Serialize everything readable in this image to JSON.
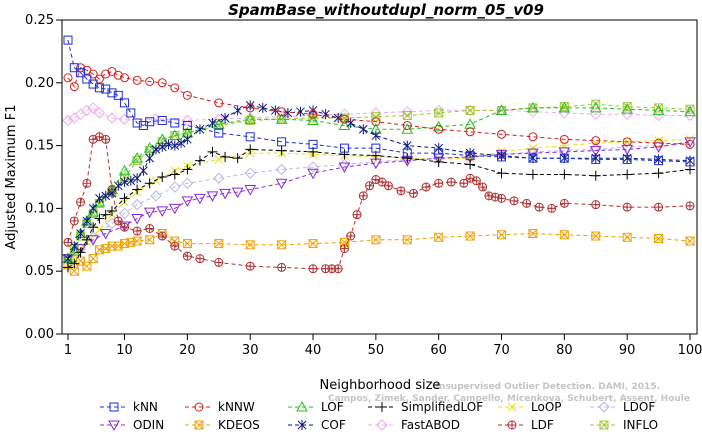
{
  "chart_data": {
    "type": "line",
    "title": "SpamBase_withoutdupl_norm_05_v09",
    "xlabel": "Neighborhood size",
    "ylabel": "Adjusted Maximum F1",
    "xlim": [
      1,
      100
    ],
    "ylim": [
      0,
      0.25
    ],
    "x_ticks": [
      "1",
      "10",
      "20",
      "30",
      "40",
      "50",
      "60",
      "70",
      "80",
      "90",
      "100"
    ],
    "y_ticks": [
      "0.00",
      "0.05",
      "0.10",
      "0.15",
      "0.20",
      "0.25"
    ],
    "grid": false,
    "legend_position": "bottom",
    "watermark": [
      "Unsupervised Outlier Detection. DAMI, 2015.",
      "Campos, Zimek, Sander, Campello, Micenkova, Schubert, Assent, Houle"
    ],
    "series": [
      {
        "name": "kNN",
        "color": "#1f2fd0",
        "marker": "square",
        "x": [
          1,
          2,
          3,
          4,
          5,
          6,
          7,
          8,
          9,
          10,
          11,
          12,
          13,
          14,
          16,
          18,
          20,
          25,
          30,
          35,
          40,
          45,
          50,
          55,
          60,
          65,
          70,
          75,
          80,
          85,
          90,
          95,
          100
        ],
        "y": [
          0.234,
          0.212,
          0.208,
          0.203,
          0.199,
          0.196,
          0.195,
          0.192,
          0.19,
          0.184,
          0.176,
          0.168,
          0.166,
          0.169,
          0.17,
          0.168,
          0.166,
          0.16,
          0.157,
          0.153,
          0.151,
          0.148,
          0.148,
          0.144,
          0.144,
          0.142,
          0.141,
          0.14,
          0.14,
          0.139,
          0.139,
          0.138,
          0.137
        ]
      },
      {
        "name": "kNNW",
        "color": "#d41f1f",
        "marker": "circle",
        "x": [
          1,
          2,
          3,
          4,
          5,
          6,
          7,
          8,
          9,
          10,
          12,
          14,
          16,
          18,
          20,
          25,
          30,
          35,
          40,
          45,
          50,
          55,
          60,
          65,
          70,
          75,
          80,
          85,
          90,
          95,
          100
        ],
        "y": [
          0.204,
          0.197,
          0.212,
          0.21,
          0.207,
          0.203,
          0.207,
          0.209,
          0.206,
          0.204,
          0.202,
          0.201,
          0.2,
          0.196,
          0.19,
          0.184,
          0.18,
          0.177,
          0.175,
          0.171,
          0.169,
          0.166,
          0.163,
          0.161,
          0.159,
          0.157,
          0.155,
          0.154,
          0.153,
          0.152,
          0.151
        ]
      },
      {
        "name": "LOF",
        "color": "#22c022",
        "marker": "triangle-up",
        "x": [
          1,
          2,
          3,
          4,
          5,
          6,
          8,
          10,
          12,
          14,
          16,
          18,
          20,
          25,
          30,
          35,
          40,
          45,
          50,
          55,
          60,
          65,
          70,
          75,
          80,
          85,
          90,
          95,
          100
        ],
        "y": [
          0.06,
          0.066,
          0.08,
          0.09,
          0.097,
          0.105,
          0.115,
          0.13,
          0.14,
          0.148,
          0.155,
          0.158,
          0.16,
          0.167,
          0.171,
          0.171,
          0.17,
          0.166,
          0.163,
          0.163,
          0.165,
          0.167,
          0.178,
          0.18,
          0.18,
          0.18,
          0.179,
          0.178,
          0.177
        ]
      },
      {
        "name": "SimplifiedLOF",
        "color": "#000000",
        "marker": "plus",
        "x": [
          1,
          2,
          3,
          4,
          5,
          6,
          7,
          8,
          10,
          12,
          14,
          16,
          18,
          20,
          22,
          24,
          26,
          28,
          30,
          35,
          40,
          45,
          50,
          55,
          60,
          65,
          70,
          75,
          80,
          85,
          90,
          95,
          100
        ],
        "y": [
          0.053,
          0.056,
          0.065,
          0.075,
          0.085,
          0.092,
          0.095,
          0.098,
          0.108,
          0.115,
          0.12,
          0.125,
          0.127,
          0.131,
          0.138,
          0.145,
          0.141,
          0.14,
          0.147,
          0.146,
          0.145,
          0.143,
          0.142,
          0.14,
          0.137,
          0.135,
          0.128,
          0.127,
          0.127,
          0.126,
          0.127,
          0.128,
          0.131
        ]
      },
      {
        "name": "LoOP",
        "color": "#e8e010",
        "marker": "x",
        "x": [
          1,
          2,
          4,
          6,
          8,
          10,
          12,
          15,
          18,
          20,
          25,
          30,
          35,
          40,
          45,
          50,
          55,
          60,
          65,
          70,
          75,
          80,
          85,
          90,
          95,
          100
        ],
        "y": [
          0.055,
          0.062,
          0.073,
          0.083,
          0.095,
          0.105,
          0.113,
          0.122,
          0.13,
          0.134,
          0.139,
          0.144,
          0.144,
          0.143,
          0.142,
          0.141,
          0.14,
          0.139,
          0.14,
          0.145,
          0.148,
          0.15,
          0.152,
          0.153,
          0.154,
          0.155
        ]
      },
      {
        "name": "LDOF",
        "color": "#b8b8e8",
        "marker": "diamond",
        "x": [
          1,
          3,
          5,
          8,
          10,
          12,
          15,
          18,
          20,
          25,
          30,
          35,
          40,
          45,
          50,
          55,
          60,
          65,
          70,
          75,
          80,
          85,
          90,
          95,
          100
        ],
        "y": [
          0.06,
          0.068,
          0.077,
          0.088,
          0.096,
          0.103,
          0.11,
          0.117,
          0.12,
          0.124,
          0.128,
          0.131,
          0.133,
          0.135,
          0.137,
          0.139,
          0.14,
          0.141,
          0.143,
          0.145,
          0.146,
          0.147,
          0.149,
          0.15,
          0.151
        ]
      },
      {
        "name": "ODIN",
        "color": "#8a2ad8",
        "marker": "triangle-down",
        "x": [
          1,
          3,
          5,
          7,
          10,
          12,
          14,
          16,
          18,
          20,
          22,
          24,
          26,
          28,
          30,
          35,
          40,
          45,
          50,
          55,
          60,
          65,
          70,
          75,
          80,
          85,
          90,
          95,
          100
        ],
        "y": [
          0.06,
          0.068,
          0.075,
          0.08,
          0.086,
          0.092,
          0.097,
          0.098,
          0.1,
          0.106,
          0.108,
          0.11,
          0.112,
          0.113,
          0.115,
          0.12,
          0.128,
          0.133,
          0.136,
          0.138,
          0.14,
          0.141,
          0.143,
          0.144,
          0.145,
          0.146,
          0.147,
          0.149,
          0.153
        ]
      },
      {
        "name": "KDEOS",
        "color": "#f0a000",
        "marker": "square-x",
        "x": [
          1,
          2,
          3,
          4,
          5,
          6,
          7,
          8,
          9,
          10,
          11,
          12,
          14,
          16,
          18,
          20,
          25,
          30,
          35,
          40,
          45,
          50,
          55,
          60,
          65,
          70,
          75,
          80,
          85,
          90,
          95,
          100
        ],
        "y": [
          0.055,
          0.05,
          0.058,
          0.054,
          0.06,
          0.067,
          0.068,
          0.07,
          0.07,
          0.072,
          0.073,
          0.074,
          0.075,
          0.08,
          0.074,
          0.072,
          0.072,
          0.071,
          0.071,
          0.072,
          0.073,
          0.075,
          0.075,
          0.077,
          0.078,
          0.079,
          0.08,
          0.079,
          0.078,
          0.077,
          0.076,
          0.074
        ]
      },
      {
        "name": "COF",
        "color": "#0a1a80",
        "marker": "asterisk",
        "x": [
          1,
          2,
          3,
          4,
          5,
          6,
          7,
          8,
          9,
          10,
          11,
          12,
          13,
          14,
          15,
          16,
          17,
          18,
          19,
          20,
          22,
          24,
          26,
          28,
          30,
          32,
          34,
          36,
          38,
          40,
          42,
          44,
          46,
          48,
          50,
          55,
          60,
          65,
          70,
          75,
          80,
          85,
          90,
          95,
          100
        ],
        "y": [
          0.06,
          0.07,
          0.08,
          0.09,
          0.1,
          0.108,
          0.11,
          0.112,
          0.118,
          0.121,
          0.122,
          0.124,
          0.13,
          0.14,
          0.147,
          0.149,
          0.151,
          0.15,
          0.152,
          0.155,
          0.163,
          0.168,
          0.172,
          0.178,
          0.182,
          0.18,
          0.178,
          0.176,
          0.177,
          0.178,
          0.175,
          0.172,
          0.168,
          0.163,
          0.158,
          0.15,
          0.148,
          0.144,
          0.142,
          0.14,
          0.14,
          0.14,
          0.14,
          0.139,
          0.138
        ]
      },
      {
        "name": "FastABOD",
        "color": "#f0a8f0",
        "marker": "diamond",
        "x": [
          1,
          2,
          3,
          4,
          5,
          6,
          8,
          10,
          15,
          20,
          25,
          30,
          35,
          40,
          45,
          50,
          55,
          60,
          65,
          70,
          75,
          80,
          85,
          90,
          95,
          100
        ],
        "y": [
          0.17,
          0.172,
          0.175,
          0.178,
          0.18,
          0.176,
          0.172,
          0.171,
          0.171,
          0.17,
          0.171,
          0.172,
          0.173,
          0.174,
          0.175,
          0.176,
          0.177,
          0.178,
          0.178,
          0.178,
          0.177,
          0.176,
          0.175,
          0.175,
          0.174,
          0.174
        ]
      },
      {
        "name": "LDF",
        "color": "#b03030",
        "marker": "circle-plus",
        "x": [
          1,
          2,
          3,
          4,
          5,
          6,
          7,
          8,
          9,
          10,
          12,
          14,
          16,
          18,
          20,
          22,
          25,
          30,
          35,
          40,
          42,
          43,
          44,
          45,
          46,
          47,
          48,
          49,
          50,
          51,
          52,
          54,
          56,
          58,
          60,
          62,
          64,
          65,
          66,
          67,
          68,
          69,
          70,
          72,
          74,
          76,
          78,
          80,
          85,
          90,
          95,
          100
        ],
        "y": [
          0.073,
          0.09,
          0.105,
          0.12,
          0.155,
          0.157,
          0.155,
          0.115,
          0.09,
          0.085,
          0.082,
          0.084,
          0.078,
          0.07,
          0.062,
          0.06,
          0.057,
          0.054,
          0.053,
          0.052,
          0.052,
          0.052,
          0.052,
          0.068,
          0.078,
          0.095,
          0.11,
          0.118,
          0.123,
          0.121,
          0.118,
          0.114,
          0.112,
          0.117,
          0.12,
          0.121,
          0.12,
          0.124,
          0.122,
          0.117,
          0.11,
          0.109,
          0.108,
          0.106,
          0.104,
          0.101,
          0.1,
          0.104,
          0.103,
          0.101,
          0.101,
          0.102
        ]
      },
      {
        "name": "INFLO",
        "color": "#a0c830",
        "marker": "square-x",
        "x": [
          1,
          2,
          3,
          4,
          5,
          6,
          8,
          10,
          12,
          14,
          16,
          18,
          20,
          25,
          30,
          35,
          40,
          45,
          50,
          55,
          60,
          65,
          70,
          75,
          80,
          85,
          90,
          95,
          100
        ],
        "y": [
          0.06,
          0.068,
          0.078,
          0.088,
          0.096,
          0.104,
          0.113,
          0.125,
          0.138,
          0.146,
          0.153,
          0.158,
          0.16,
          0.166,
          0.17,
          0.171,
          0.172,
          0.172,
          0.173,
          0.174,
          0.176,
          0.178,
          0.178,
          0.18,
          0.181,
          0.183,
          0.181,
          0.18,
          0.179
        ]
      }
    ]
  }
}
